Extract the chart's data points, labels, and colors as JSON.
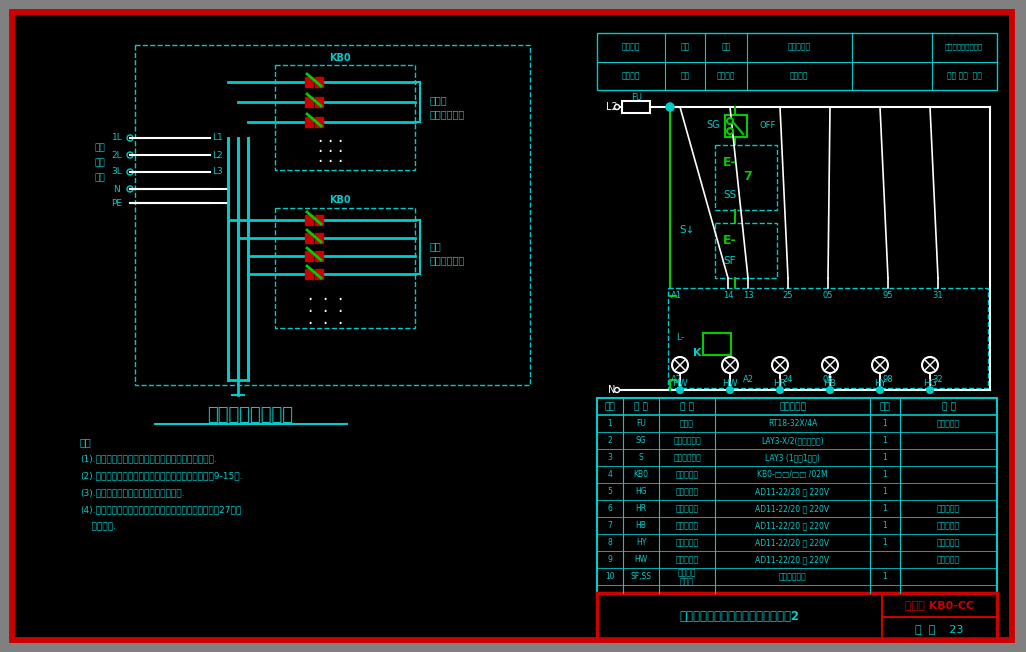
{
  "bg": "#000000",
  "lc": "#00cccc",
  "lg": "#00cc00",
  "lw": "#ffffff",
  "lr": "#cc0000",
  "tc": "#00cccc",
  "tw": "#ffffff",
  "tr": "#cc0000",
  "gray": "#808080",
  "title_left": "照明配电箱系统图",
  "notes": [
    "注：",
    "(1).本图适用于就地检修手控和正常工作时远距离控制.",
    "(2).控制保护器的选型由工程设计决定，详见本图集第9-15页.",
    "(3).外引通断按钮可在箱面上或墙上安装.",
    "(4).当照明回路需要消防联动切断功能时，详见本图集第27页控",
    "    制电路图."
  ],
  "table_headers": [
    "序号",
    "符 号",
    "名 称",
    "型号及规格",
    "数量",
    "备 注"
  ],
  "table_rows": [
    [
      "1",
      "FU",
      "熔断器",
      "RT18-32X/4A",
      "1",
      "带熔断指示"
    ],
    [
      "2",
      "SG",
      "旋钮位置开关",
      "LAY3-X/2(三位旋位式)",
      "1",
      ""
    ],
    [
      "3",
      "S",
      "瞬断按钮开关",
      "LAY3 (1常开1常闭)",
      "1",
      ""
    ],
    [
      "4",
      "KB0",
      "控制保护器",
      "KB0-□□/□□ /02M",
      "1",
      ""
    ],
    [
      "5",
      "HG",
      "绿色信号灯",
      "AD11-22/20 ～ 220V",
      "1",
      ""
    ],
    [
      "6",
      "HR",
      "红色信号灯",
      "AD11-22/20 ～ 220V",
      "1",
      "按需要增减"
    ],
    [
      "7",
      "HB",
      "蓝色信号灯",
      "AD11-22/20 ～ 220V",
      "1",
      "按需要增减"
    ],
    [
      "8",
      "HY",
      "黄色信号灯",
      "AD11-22/20 ～ 220V",
      "1",
      "按需要增减"
    ],
    [
      "9",
      "HW",
      "白色信号灯",
      "AD11-22/20 ～ 220V",
      "",
      "按需要增减"
    ],
    [
      "10",
      "SF,SS",
      "外引通断\n按钮组",
      "工程设计决定",
      "1",
      ""
    ]
  ],
  "bottom_left_text": "照明回路电源接通与切断控制电路图2",
  "bottom_right_top": "图集号 KB0-CC",
  "bottom_right_bottom": "页  号    23"
}
